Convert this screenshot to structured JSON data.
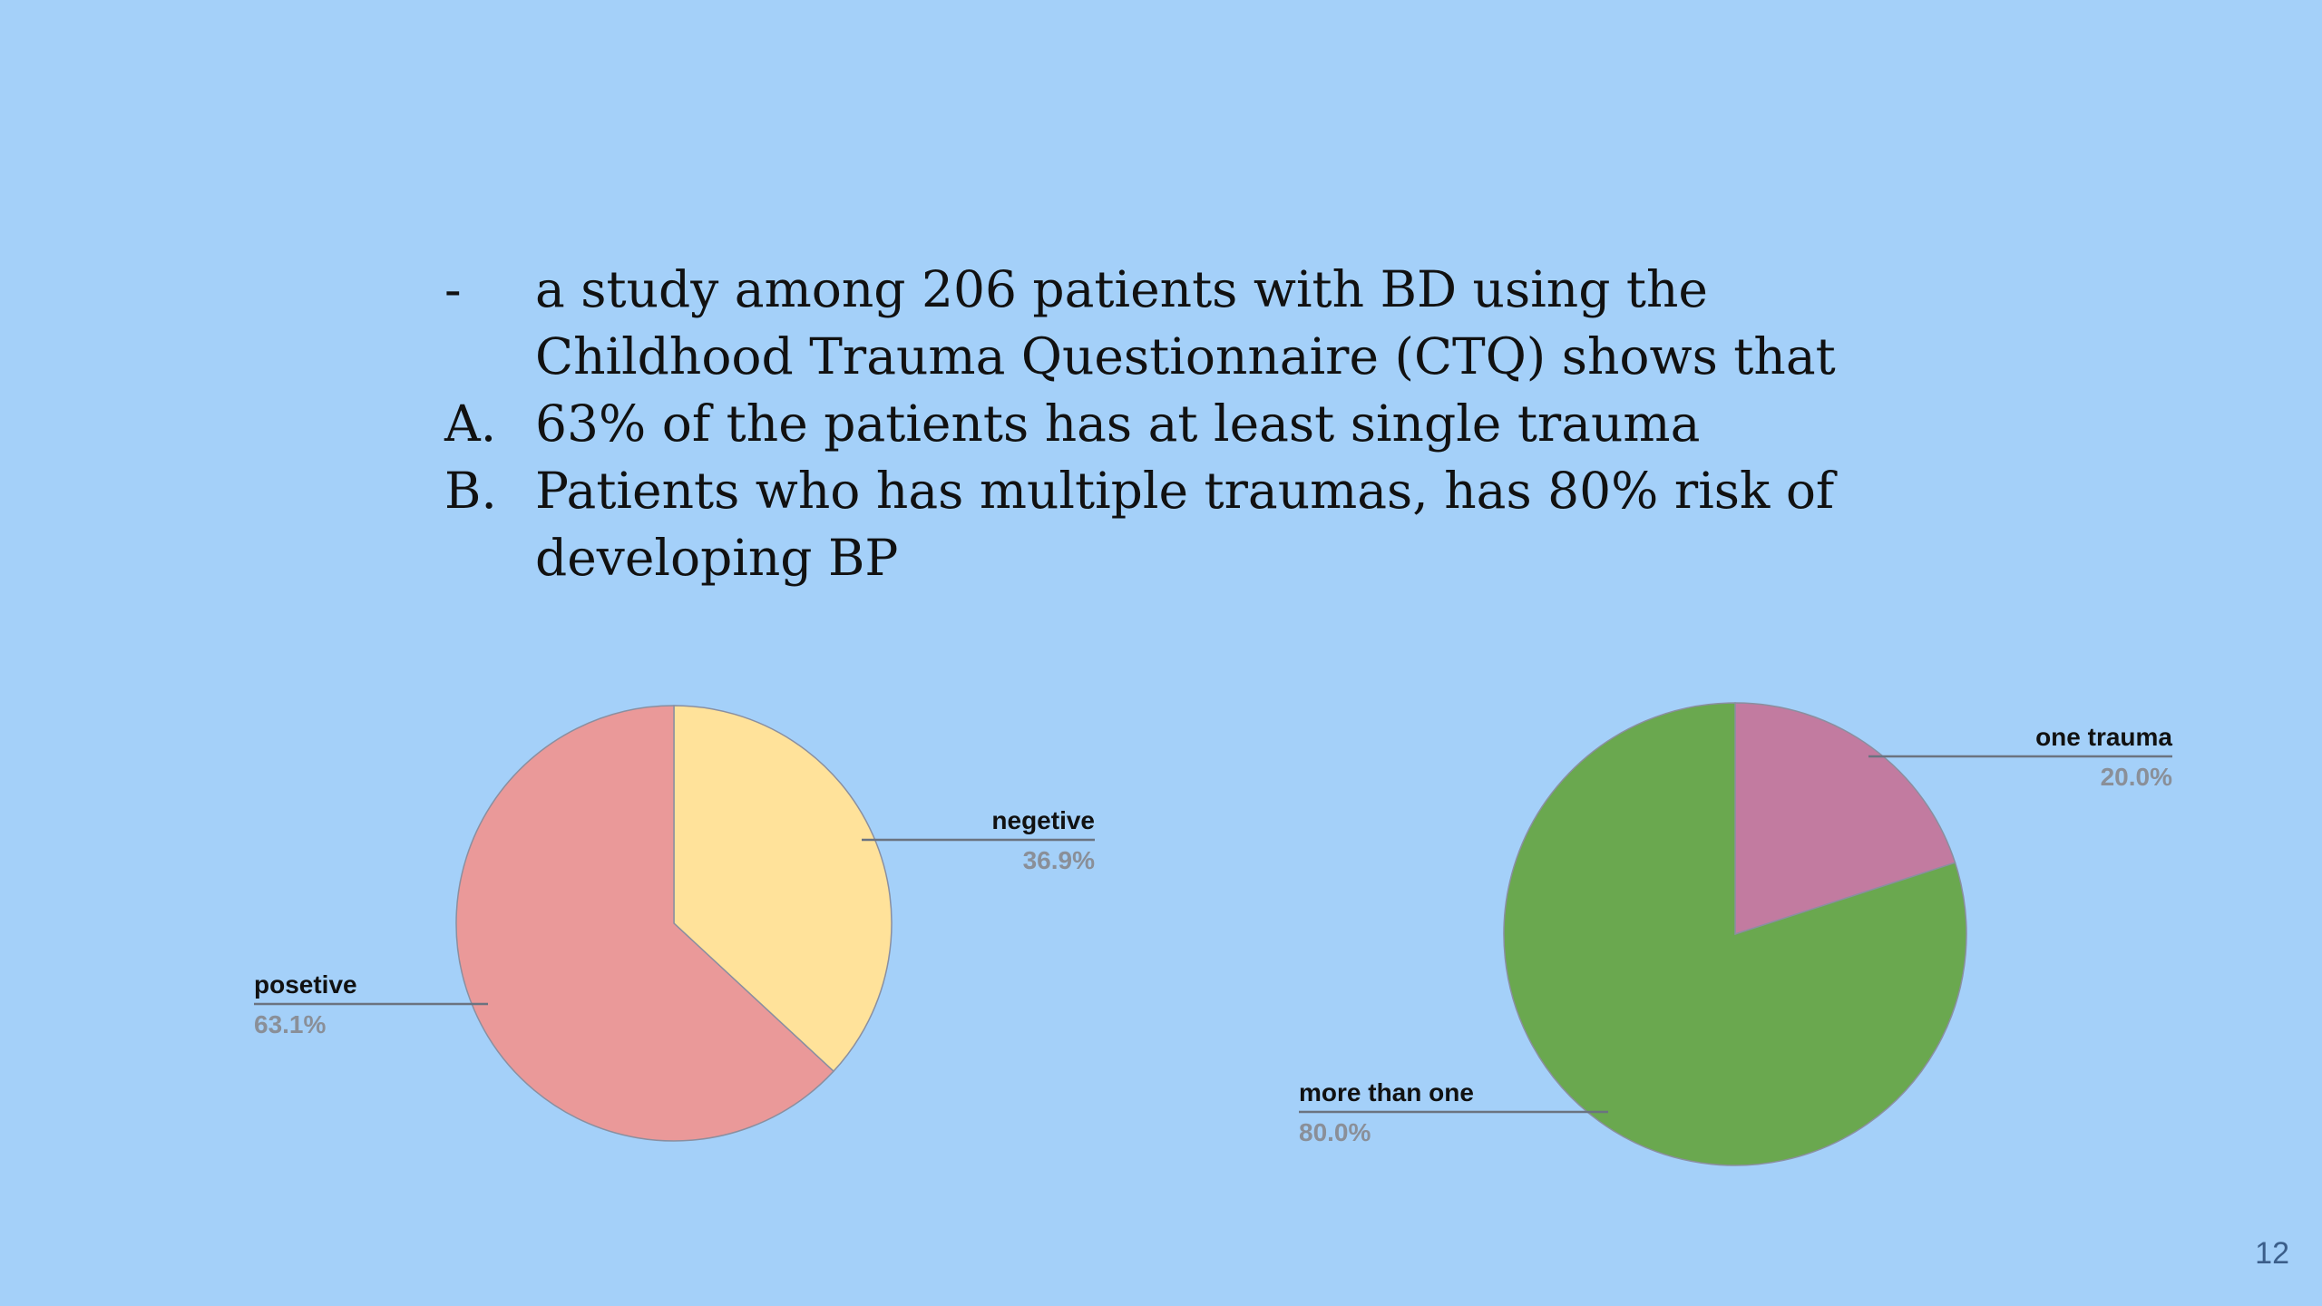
{
  "slide": {
    "bullets": [
      {
        "marker": "-",
        "text": "a study among 206 patients with BD using the Childhood Trauma Questionnaire (CTQ) shows that"
      },
      {
        "marker": "A.",
        "text": "63% of the patients has at least single trauma"
      },
      {
        "marker": "B.",
        "text": "Patients who has multiple traumas, has 80% risk of developing BP"
      }
    ],
    "page_number": "12"
  },
  "chart_data": [
    {
      "type": "pie",
      "slices": [
        {
          "label": "negetive",
          "value": 36.9,
          "value_label": "36.9%",
          "color": "#ffe29a"
        },
        {
          "label": "posetive",
          "value": 63.1,
          "value_label": "63.1%",
          "color": "#ea9999"
        }
      ]
    },
    {
      "type": "pie",
      "slices": [
        {
          "label": "one trauma",
          "value": 20.0,
          "value_label": "20.0%",
          "color": "#c27ba0"
        },
        {
          "label": "more than one",
          "value": 80.0,
          "value_label": "80.0%",
          "color": "#6aa84f"
        }
      ]
    }
  ]
}
